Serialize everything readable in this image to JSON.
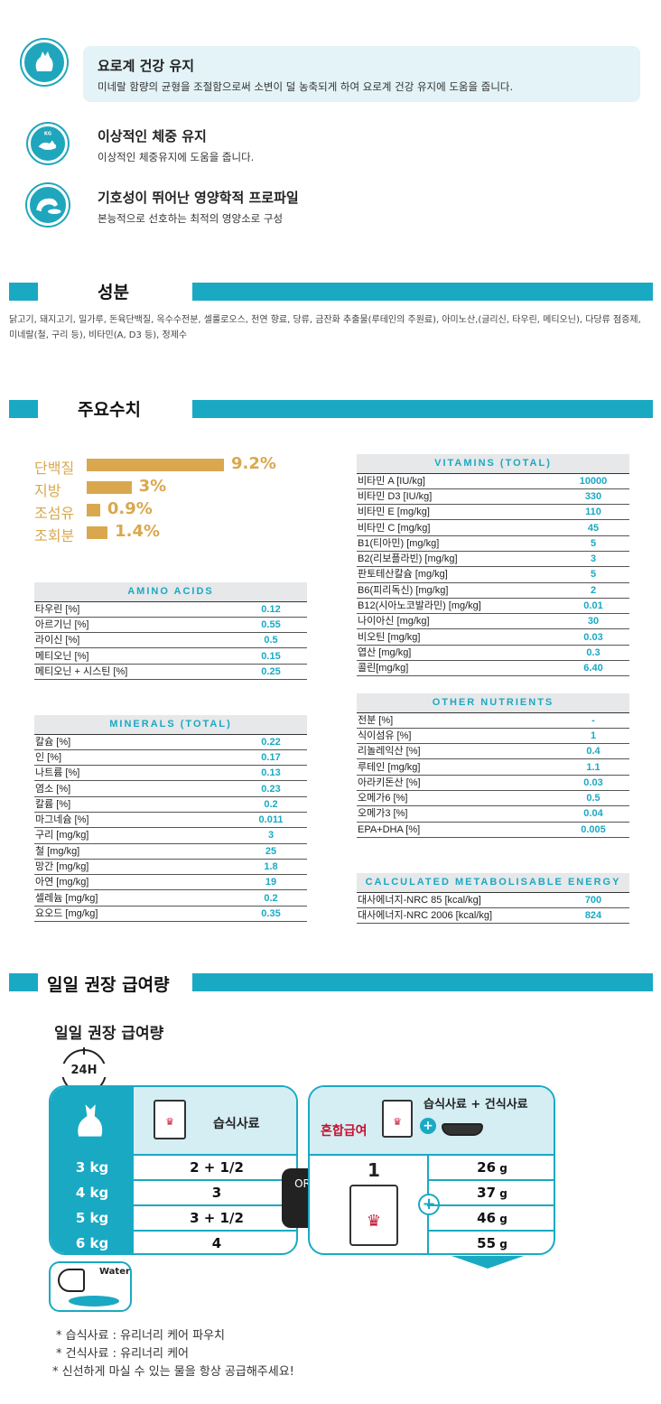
{
  "benefits": [
    {
      "icon": "urinary-cat-icon",
      "title": "요로계 건강 유지",
      "desc": "미네랄 함량의 균형을 조절함으로써 소변이 덜 농축되게 하여 요로계 건강 유지에 도움을 줍니다."
    },
    {
      "icon": "weight-cat-icon",
      "badge": "KG",
      "title": "이상적인 체중 유지",
      "desc": "이상적인 체중유지에 도움을 줍니다."
    },
    {
      "icon": "eating-cat-icon",
      "title": "기호성이 뛰어난 영양학적 프로파일",
      "desc": "본능적으로 선호하는 최적의 영양소로 구성"
    }
  ],
  "ingredients": {
    "title": "성분",
    "text": "닭고기, 돼지고기, 밀가루, 돈육단백질, 옥수수전분, 셀룰로오스, 천연 향료, 당류, 금잔화 추출물(루테인의 주원료), 아미노산,(글리신, 타우린, 메티오닌), 다당류 점증제, 미네랄(철, 구리 등), 비타민(A, D3 등), 정제수"
  },
  "key_values": {
    "title": "주요수치",
    "chart_data": {
      "type": "bar",
      "categories": [
        "단백질",
        "지방",
        "조섬유",
        "조회분"
      ],
      "values": [
        9.2,
        3,
        0.9,
        1.4
      ],
      "labels": [
        "9.2%",
        "3%",
        "0.9%",
        "1.4%"
      ],
      "unit": "%",
      "color": "#d9a84e"
    }
  },
  "amino": {
    "title": "AMINO ACIDS",
    "rows": [
      [
        "타우린 [%]",
        "0.12"
      ],
      [
        "아르기닌 [%]",
        "0.55"
      ],
      [
        "라이신 [%]",
        "0.5"
      ],
      [
        "메티오닌 [%]",
        "0.15"
      ],
      [
        "메티오닌 + 시스틴 [%]",
        "0.25"
      ]
    ]
  },
  "minerals": {
    "title": "MINERALS (TOTAL)",
    "rows": [
      [
        "칼슘 [%]",
        "0.22"
      ],
      [
        "인 [%]",
        "0.17"
      ],
      [
        "나트륨 [%]",
        "0.13"
      ],
      [
        "염소 [%]",
        "0.23"
      ],
      [
        "칼륨 [%]",
        "0.2"
      ],
      [
        "마그네슘 [%]",
        "0.011"
      ],
      [
        "구리 [mg/kg]",
        "3"
      ],
      [
        "철 [mg/kg]",
        "25"
      ],
      [
        "망간 [mg/kg]",
        "1.8"
      ],
      [
        "아연 [mg/kg]",
        "19"
      ],
      [
        "셀레늄 [mg/kg]",
        "0.2"
      ],
      [
        "요오드 [mg/kg]",
        "0.35"
      ]
    ]
  },
  "vitamins": {
    "title": "VITAMINS (TOTAL)",
    "rows": [
      [
        "비타민 A [IU/kg]",
        "10000"
      ],
      [
        "비타민 D3 [IU/kg]",
        "330"
      ],
      [
        "비타민 E [mg/kg]",
        "110"
      ],
      [
        "비타민 C [mg/kg]",
        "45"
      ],
      [
        "B1(티아민) [mg/kg]",
        "5"
      ],
      [
        "B2(리보플라빈) [mg/kg]",
        "3"
      ],
      [
        "판토테산칼슘 [mg/kg]",
        "5"
      ],
      [
        "B6(피리독신) [mg/kg]",
        "2"
      ],
      [
        "B12(시아노코발라민) [mg/kg]",
        "0.01"
      ],
      [
        "나이아신 [mg/kg]",
        "30"
      ],
      [
        "비오틴 [mg/kg]",
        "0.03"
      ],
      [
        "엽산 [mg/kg]",
        "0.3"
      ],
      [
        "콜린[mg/kg]",
        "6.40"
      ]
    ]
  },
  "other": {
    "title": "OTHER NUTRIENTS",
    "rows": [
      [
        "전분 [%]",
        "-"
      ],
      [
        "식이섬유 [%]",
        "1"
      ],
      [
        "리놀레익산 [%]",
        "0.4"
      ],
      [
        "루테인 [mg/kg]",
        "1.1"
      ],
      [
        "아라키돈산 [%]",
        "0.03"
      ],
      [
        "오메가6 [%]",
        "0.5"
      ],
      [
        "오메가3 [%]",
        "0.04"
      ],
      [
        "EPA+DHA [%]",
        "0.005"
      ]
    ]
  },
  "energy": {
    "title": "CALCULATED METABOLISABLE ENERGY",
    "rows": [
      [
        "대사에너지-NRC 85 [kcal/kg]",
        "700"
      ],
      [
        "대사에너지-NRC 2006 [kcal/kg]",
        "824"
      ]
    ]
  },
  "feeding": {
    "section_title": "일일 권장 급여량",
    "subtitle": "일일 권장 급여량",
    "clock_label": "24H",
    "wet_label": "습식사료",
    "mixed_label": "혼합급여",
    "mixed_title": "습식사료 + 건식사료",
    "or_label": "OR",
    "mixed_pouch_count": "1",
    "water_label": "Water",
    "weights": [
      "3 kg",
      "4 kg",
      "5 kg",
      "6 kg"
    ],
    "wet_amounts": [
      "2 + 1/2",
      "3",
      "3 + 1/2",
      "4"
    ],
    "dry_amounts": [
      "26",
      "37",
      "46",
      "55"
    ],
    "dry_unit": "g"
  },
  "notes": [
    "* 습식사료 : 유리너리 케어 파우치",
    "* 건식사료 : 유리너리 케어",
    "* 신선하게 마실 수 있는 물을 항상 공급해주세요!"
  ],
  "colors": {
    "accent": "#1aa9c3",
    "gold": "#d9a84e",
    "brand_red": "#c8102e"
  }
}
